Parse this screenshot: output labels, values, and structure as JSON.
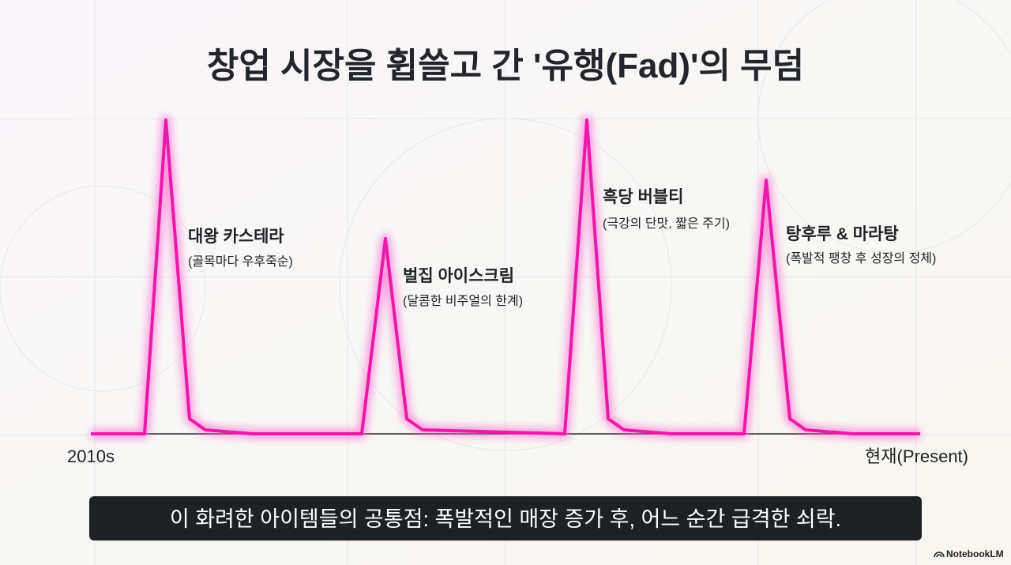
{
  "header": {
    "title": "창업 시장을 휩쓸고 간 '유행(Fad)'의 무덤"
  },
  "annotations": [
    {
      "label": "대왕 카스테라",
      "note": "(골목마다 우후죽순)"
    },
    {
      "label": "벌집 아이스크림",
      "note": "(달콤한 비주얼의 한계)"
    },
    {
      "label": "흑당 버블티",
      "note": "(극강의 단맛, 짧은 주기)"
    },
    {
      "label": "탕후루 & 마라탕",
      "note": "(폭발적 팽창 후 성장의 정체)"
    }
  ],
  "axis": {
    "start": "2010s",
    "end": "현재(Present)"
  },
  "caption": "이 화려한 아이템들의 공통점: 폭발적인 매장 증가 후, 어느 순간 급격한 쇠락.",
  "brand": "NotebookLM"
}
